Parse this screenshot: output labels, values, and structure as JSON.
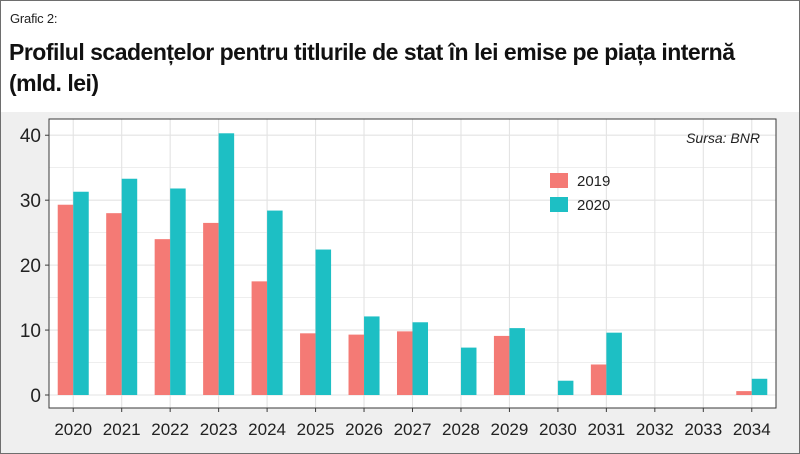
{
  "label": "Grafic 2:",
  "title": "Profilul scadențelor pentru titlurile de stat în lei emise pe piața internă (mld. lei)",
  "source": "Sursa: BNR",
  "colors": {
    "s2019": "#f47a75",
    "s2020": "#1dbfc4",
    "grid": "#e3e3e3",
    "frame": "#3a3a3a"
  },
  "chart_data": {
    "type": "bar",
    "categories": [
      "2020",
      "2021",
      "2022",
      "2023",
      "2024",
      "2025",
      "2026",
      "2027",
      "2028",
      "2029",
      "2030",
      "2031",
      "2032",
      "2033",
      "2034"
    ],
    "series": [
      {
        "name": "2019",
        "values": [
          29.3,
          28.0,
          24.0,
          26.5,
          17.5,
          9.5,
          9.3,
          9.8,
          0,
          9.1,
          0,
          4.7,
          0,
          0,
          0.6
        ]
      },
      {
        "name": "2020",
        "values": [
          31.3,
          33.3,
          31.8,
          40.3,
          28.4,
          22.4,
          12.1,
          11.2,
          7.3,
          10.3,
          2.2,
          9.6,
          0,
          0,
          2.5
        ]
      }
    ],
    "yticks": [
      0,
      10,
      20,
      30,
      40
    ],
    "ylim": [
      -2,
      42.5
    ],
    "grid": true,
    "legend_position": "top-right"
  }
}
